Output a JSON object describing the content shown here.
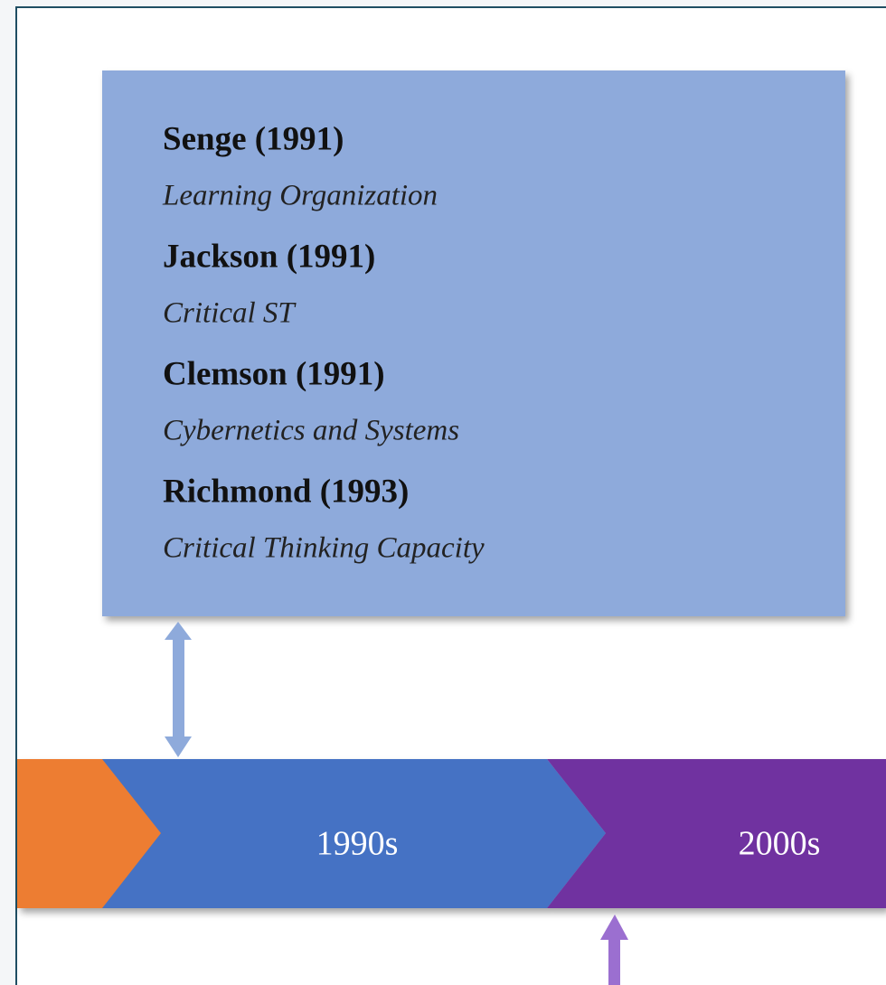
{
  "box": {
    "entries": [
      {
        "name": "Senge (1991)",
        "topic": "Learning Organization"
      },
      {
        "name": "Jackson (1991)",
        "topic": "Critical ST"
      },
      {
        "name": "Clemson (1991)",
        "topic": "Cybernetics and Systems"
      },
      {
        "name": "Richmond (1993)",
        "topic": "Critical Thinking Capacity"
      }
    ]
  },
  "timeline": {
    "eras": [
      "1990s",
      "2000s"
    ]
  }
}
